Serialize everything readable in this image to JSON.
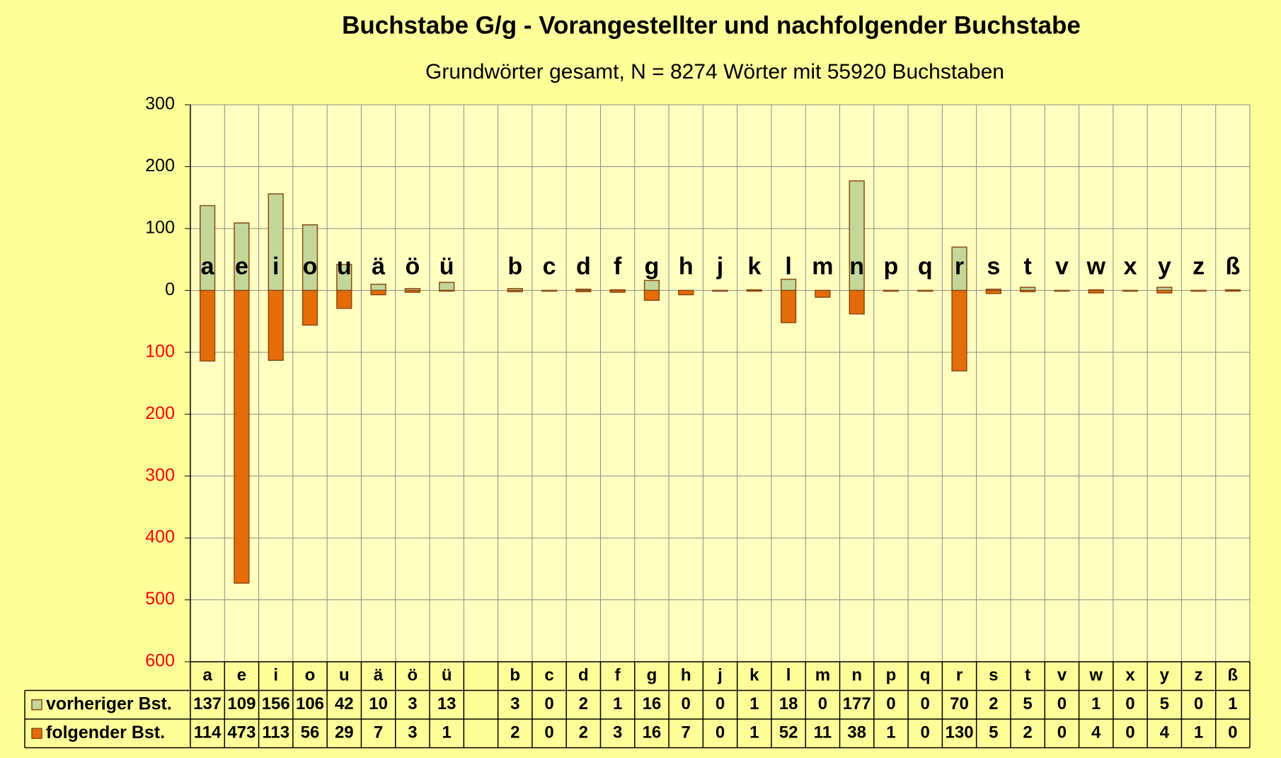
{
  "chart_data": {
    "type": "bar",
    "title": "Buchstabe G/g - Vorangestellter und nachfolgender Buchstabe",
    "subtitle": "Grundwörter gesamt,  N = 8274 Wörter mit 55920 Buchstaben",
    "categories": [
      "a",
      "e",
      "i",
      "o",
      "u",
      "ä",
      "ö",
      "ü",
      null,
      "b",
      "c",
      "d",
      "f",
      "g",
      "h",
      "j",
      "k",
      "l",
      "m",
      "n",
      "p",
      "q",
      "r",
      "s",
      "t",
      "v",
      "w",
      "x",
      "y",
      "z",
      "ß"
    ],
    "series": [
      {
        "name": "vorheriger Bst.",
        "color": "#c4d79b",
        "values": [
          137,
          109,
          156,
          106,
          42,
          10,
          3,
          13,
          null,
          3,
          0,
          2,
          1,
          16,
          0,
          0,
          1,
          18,
          0,
          177,
          0,
          0,
          70,
          2,
          5,
          0,
          1,
          0,
          5,
          0,
          1
        ]
      },
      {
        "name": "folgender Bst.",
        "color": "#e46c0a",
        "values": [
          -114,
          -473,
          -113,
          -56,
          -29,
          -7,
          -3,
          -1,
          null,
          -2,
          0,
          -2,
          -3,
          -16,
          -7,
          0,
          -1,
          -52,
          -11,
          -38,
          -1,
          0,
          -130,
          -5,
          -2,
          0,
          -4,
          0,
          -4,
          -1,
          0
        ],
        "value_labels": [
          "114",
          "473",
          "113",
          "56",
          "29",
          "7",
          "3",
          "1",
          null,
          "2",
          "0",
          "2",
          "3",
          "16",
          "7",
          "0",
          "1",
          "52",
          "11",
          "38",
          "1",
          "0",
          "130",
          "5",
          "2",
          "0",
          "4",
          "0",
          "4",
          "1",
          "0"
        ]
      }
    ],
    "ylim": [
      -600,
      300
    ],
    "yticks": [
      300,
      200,
      100,
      0,
      {
        "value": -100,
        "label": "100"
      },
      {
        "value": -200,
        "label": "200"
      },
      {
        "value": -300,
        "label": "300"
      },
      {
        "value": -400,
        "label": "400"
      },
      {
        "value": -500,
        "label": "500"
      },
      {
        "value": -600,
        "label": "600"
      }
    ],
    "grid": true
  }
}
